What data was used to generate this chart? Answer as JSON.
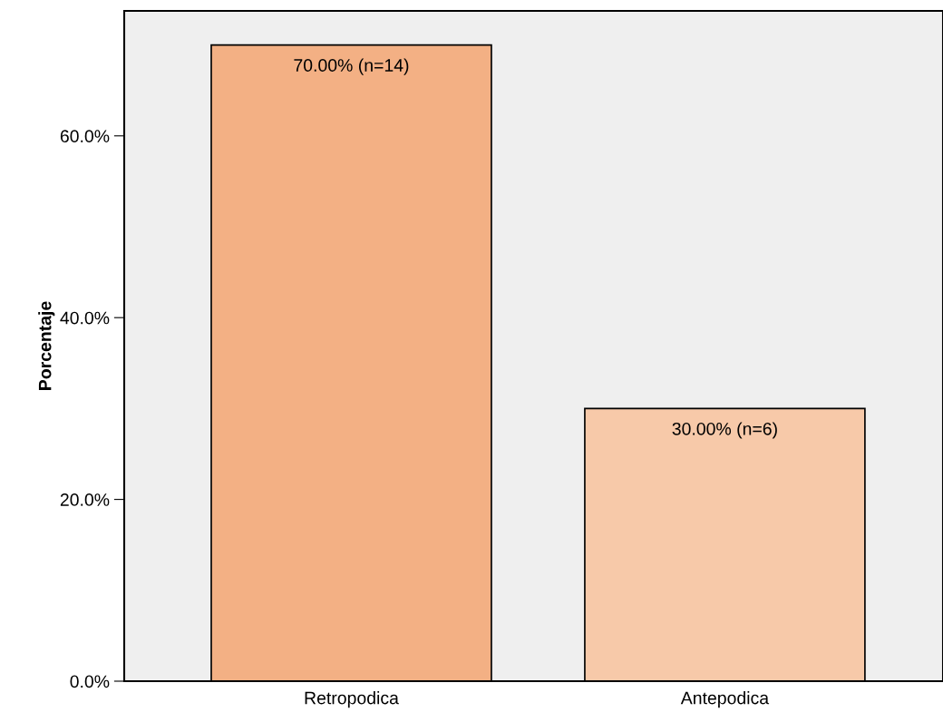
{
  "chart_data": {
    "type": "bar",
    "ylabel": "Porcentaje",
    "categories": [
      "Retropodica",
      "Antepodica"
    ],
    "values": [
      70,
      30
    ],
    "colors": [
      "#f3b084",
      "#f7c9a9"
    ],
    "value_labels": [
      "70.00% (n=14)",
      "30.00% (n=6)"
    ],
    "ylim": [
      0,
      73.75
    ],
    "yticks": [
      {
        "value": 0,
        "label": "0.0%"
      },
      {
        "value": 20,
        "label": "20.0%"
      },
      {
        "value": 40,
        "label": "40.0%"
      },
      {
        "value": 60,
        "label": "60.0%"
      }
    ],
    "grid": false,
    "legend": false
  }
}
